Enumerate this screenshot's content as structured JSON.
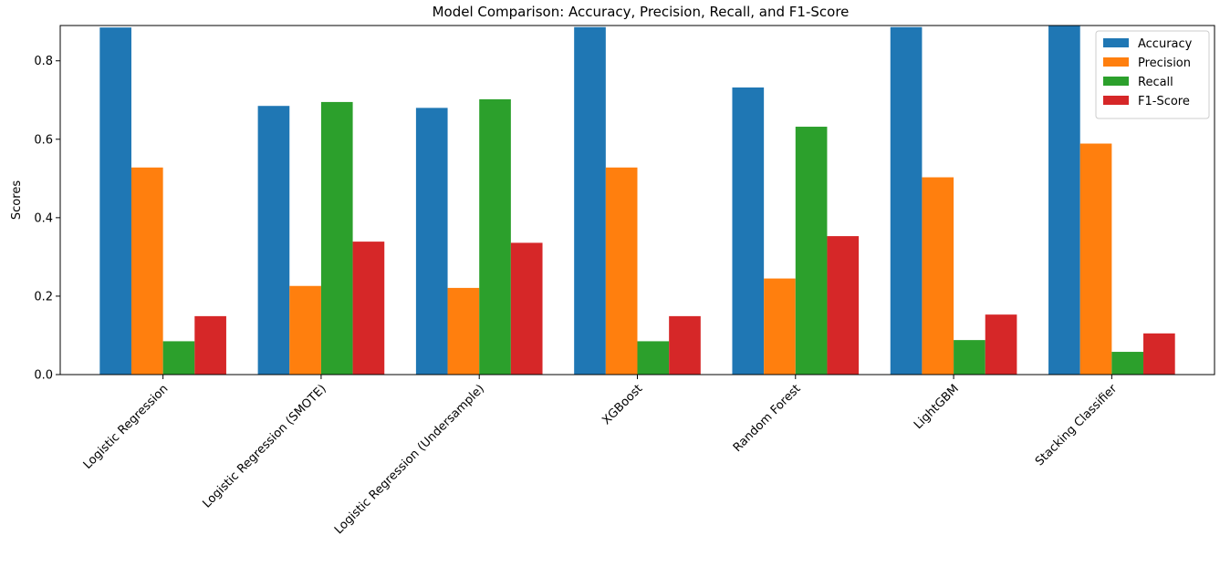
{
  "chart_data": {
    "type": "bar",
    "title": "Model Comparison: Accuracy, Precision, Recall, and F1-Score",
    "xlabel": "",
    "ylabel": "Scores",
    "ylim": [
      0,
      0.89
    ],
    "yticks": [
      0.0,
      0.2,
      0.4,
      0.6,
      0.8
    ],
    "ytick_labels": [
      "0.0",
      "0.2",
      "0.4",
      "0.6",
      "0.8"
    ],
    "grid": false,
    "legend_position": "top-right",
    "categories": [
      "Logistic Regression",
      "Logistic Regression (SMOTE)",
      "Logistic Regression (Undersample)",
      "XGBoost",
      "Random Forest",
      "LightGBM",
      "Stacking Classifier"
    ],
    "series": [
      {
        "name": "Accuracy",
        "color": "#1f77b4",
        "values": [
          0.885,
          0.685,
          0.68,
          0.886,
          0.732,
          0.886,
          0.89
        ]
      },
      {
        "name": "Precision",
        "color": "#ff7f0e",
        "values": [
          0.528,
          0.226,
          0.221,
          0.528,
          0.245,
          0.503,
          0.589
        ]
      },
      {
        "name": "Recall",
        "color": "#2ca02c",
        "values": [
          0.085,
          0.695,
          0.702,
          0.085,
          0.632,
          0.088,
          0.058
        ]
      },
      {
        "name": "F1-Score",
        "color": "#d62728",
        "values": [
          0.149,
          0.339,
          0.336,
          0.149,
          0.353,
          0.153,
          0.105
        ]
      }
    ]
  }
}
